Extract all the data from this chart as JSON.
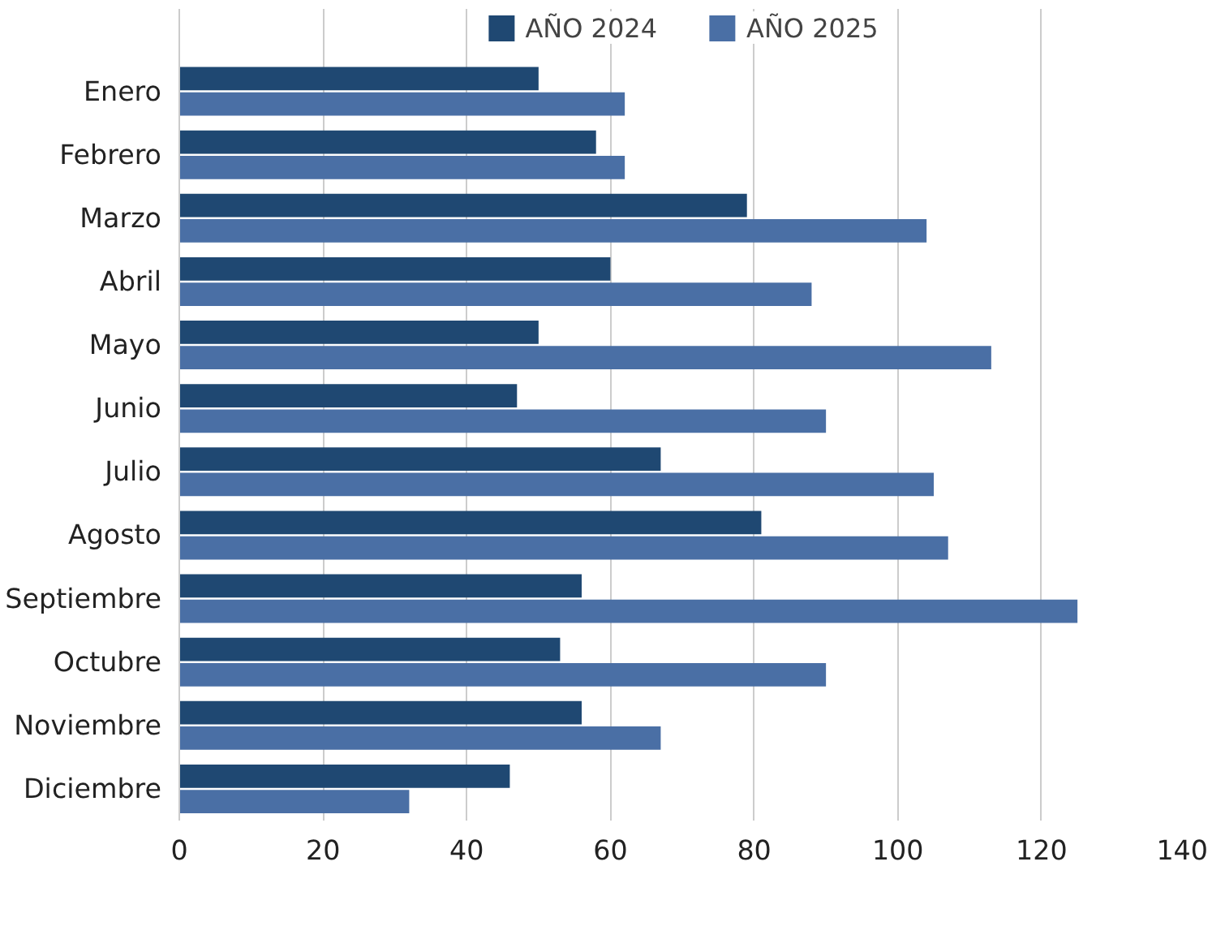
{
  "chart_data": {
    "type": "bar",
    "orientation": "horizontal",
    "categories": [
      "Enero",
      "Febrero",
      "Marzo",
      "Abril",
      "Mayo",
      "Junio",
      "Julio",
      "Agosto",
      "Septiembre",
      "Octubre",
      "Noviembre",
      "Diciembre"
    ],
    "series": [
      {
        "name": "AÑO 2024",
        "color": "#1f4872",
        "values": [
          50,
          58,
          79,
          60,
          50,
          47,
          67,
          81,
          56,
          53,
          56,
          46
        ]
      },
      {
        "name": "AÑO 2025",
        "color": "#4a6fa5",
        "values": [
          62,
          62,
          104,
          88,
          113,
          90,
          105,
          107,
          125,
          90,
          67,
          32
        ]
      }
    ],
    "xlim": [
      0,
      140
    ],
    "xticks": [
      0,
      20,
      40,
      60,
      80,
      100,
      120,
      140
    ],
    "grid": "x",
    "legend": "top"
  }
}
